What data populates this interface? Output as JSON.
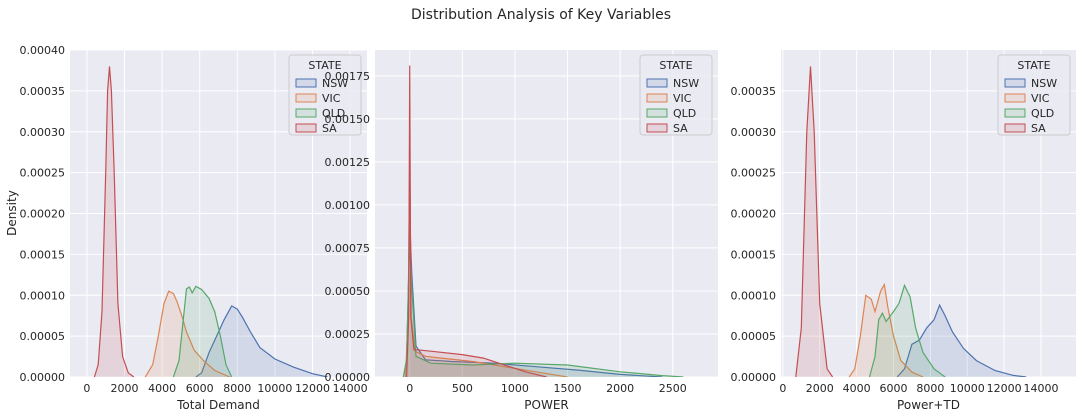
{
  "figure": {
    "title": "Distribution Analysis of Key Variables"
  },
  "colors": {
    "NSW": "#4c72b0",
    "VIC": "#dd8452",
    "QLD": "#55a868",
    "SA": "#c44e52",
    "panel_bg": "#eaeaf2",
    "grid": "#ffffff"
  },
  "chart_data": [
    {
      "type": "area",
      "xlabel": "Total Demand",
      "ylabel": "Density",
      "xlim": [
        -900,
        14900
      ],
      "ylim": [
        0,
        0.0004
      ],
      "x_ticks": [
        0,
        2000,
        4000,
        6000,
        8000,
        10000,
        12000,
        14000
      ],
      "x_tick_labels": [
        "0",
        "2000",
        "4000",
        "6000",
        "8000",
        "10000",
        "12000",
        "14000"
      ],
      "y_ticks": [
        0,
        5e-05,
        0.0001,
        0.00015,
        0.0002,
        0.00025,
        0.0003,
        0.00035,
        0.0004
      ],
      "y_tick_labels": [
        "0.00000",
        "0.00005",
        "0.00010",
        "0.00015",
        "0.00020",
        "0.00025",
        "0.00030",
        "0.00035",
        "0.00040"
      ],
      "grid": true,
      "legend": {
        "title": "STATE",
        "placement": "top-right",
        "entries": [
          "NSW",
          "VIC",
          "QLD",
          "SA"
        ]
      },
      "series": [
        {
          "name": "NSW",
          "points": [
            [
              5800,
              0
            ],
            [
              6100,
              5e-06
            ],
            [
              6500,
              3e-05
            ],
            [
              6900,
              5e-05
            ],
            [
              7300,
              7e-05
            ],
            [
              7700,
              8.7e-05
            ],
            [
              8000,
              8.3e-05
            ],
            [
              8300,
              7.2e-05
            ],
            [
              8700,
              5.5e-05
            ],
            [
              9200,
              3.6e-05
            ],
            [
              10000,
              2.2e-05
            ],
            [
              11000,
              1.2e-05
            ],
            [
              12000,
              4e-06
            ],
            [
              12800,
              0
            ]
          ]
        },
        {
          "name": "VIC",
          "points": [
            [
              3100,
              0
            ],
            [
              3500,
              1.5e-05
            ],
            [
              3800,
              5e-05
            ],
            [
              4100,
              9e-05
            ],
            [
              4350,
              0.000105
            ],
            [
              4600,
              0.000102
            ],
            [
              4800,
              9.2e-05
            ],
            [
              5050,
              7.5e-05
            ],
            [
              5300,
              5.5e-05
            ],
            [
              5700,
              3.3e-05
            ],
            [
              6200,
              2e-05
            ],
            [
              6800,
              8e-06
            ],
            [
              7600,
              0
            ]
          ]
        },
        {
          "name": "QLD",
          "points": [
            [
              4600,
              0
            ],
            [
              4900,
              2e-05
            ],
            [
              5100,
              6.5e-05
            ],
            [
              5300,
              0.000108
            ],
            [
              5450,
              0.00011
            ],
            [
              5600,
              0.000103
            ],
            [
              5800,
              0.000111
            ],
            [
              6100,
              0.000107
            ],
            [
              6500,
              9.6e-05
            ],
            [
              6800,
              8e-05
            ],
            [
              7100,
              5e-05
            ],
            [
              7400,
              1.5e-05
            ],
            [
              7700,
              0
            ]
          ]
        },
        {
          "name": "SA",
          "points": [
            [
              400,
              0
            ],
            [
              600,
              1.5e-05
            ],
            [
              800,
              8e-05
            ],
            [
              1000,
              0.00025
            ],
            [
              1100,
              0.00035
            ],
            [
              1200,
              0.00038
            ],
            [
              1300,
              0.00035
            ],
            [
              1450,
              0.00025
            ],
            [
              1650,
              9e-05
            ],
            [
              1900,
              2.5e-05
            ],
            [
              2200,
              5e-06
            ],
            [
              2500,
              0
            ]
          ]
        }
      ]
    },
    {
      "type": "area",
      "xlabel": "POWER",
      "ylabel": "",
      "xlim": [
        -330,
        2930
      ],
      "ylim": [
        0,
        0.0019
      ],
      "x_ticks": [
        0,
        500,
        1000,
        1500,
        2000,
        2500
      ],
      "x_tick_labels": [
        "0",
        "500",
        "1000",
        "1500",
        "2000",
        "2500"
      ],
      "y_ticks": [
        0,
        0.00025,
        0.0005,
        0.00075,
        0.001,
        0.00125,
        0.0015,
        0.00175
      ],
      "y_tick_labels": [
        "0.00000",
        "0.00025",
        "0.00050",
        "0.00075",
        "0.00100",
        "0.00125",
        "0.00150",
        "0.00175"
      ],
      "grid": true,
      "legend": {
        "title": "STATE",
        "placement": "top-right",
        "entries": [
          "NSW",
          "VIC",
          "QLD",
          "SA"
        ]
      },
      "series": [
        {
          "name": "NSW",
          "points": [
            [
              -60,
              0
            ],
            [
              -30,
              0.0001
            ],
            [
              -10,
              0.0006
            ],
            [
              0,
              0.00092
            ],
            [
              20,
              0.0006
            ],
            [
              60,
              0.00018
            ],
            [
              150,
              0.0001
            ],
            [
              400,
              9e-05
            ],
            [
              800,
              8e-05
            ],
            [
              1200,
              6e-05
            ],
            [
              1600,
              4e-05
            ],
            [
              2000,
              1.5e-05
            ],
            [
              2400,
              0
            ]
          ]
        },
        {
          "name": "VIC",
          "points": [
            [
              -40,
              0
            ],
            [
              -15,
              0.00035
            ],
            [
              0,
              0.00125
            ],
            [
              15,
              0.00035
            ],
            [
              50,
              0.00015
            ],
            [
              150,
              0.00012
            ],
            [
              300,
              0.00011
            ],
            [
              600,
              9e-05
            ],
            [
              900,
              6e-05
            ],
            [
              1200,
              3e-05
            ],
            [
              1500,
              0
            ]
          ]
        },
        {
          "name": "QLD",
          "points": [
            [
              -60,
              0
            ],
            [
              -30,
              0.0001
            ],
            [
              -10,
              0.00058
            ],
            [
              0,
              0.00078
            ],
            [
              20,
              0.00052
            ],
            [
              60,
              0.00012
            ],
            [
              200,
              8e-05
            ],
            [
              600,
              7e-05
            ],
            [
              1000,
              8e-05
            ],
            [
              1500,
              7e-05
            ],
            [
              2000,
              3e-05
            ],
            [
              2400,
              8e-06
            ],
            [
              2600,
              0
            ]
          ]
        },
        {
          "name": "SA",
          "points": [
            [
              -30,
              0
            ],
            [
              -10,
              0.00035
            ],
            [
              0,
              0.00181
            ],
            [
              10,
              0.00035
            ],
            [
              40,
              0.00016
            ],
            [
              200,
              0.00015
            ],
            [
              500,
              0.00013
            ],
            [
              700,
              0.00011
            ],
            [
              900,
              7e-05
            ],
            [
              1100,
              3e-05
            ],
            [
              1300,
              0
            ]
          ]
        }
      ]
    },
    {
      "type": "area",
      "xlabel": "Power+TD",
      "ylabel": "",
      "xlim": [
        -100,
        15900
      ],
      "ylim": [
        0,
        0.0004
      ],
      "x_ticks": [
        0,
        2000,
        4000,
        6000,
        8000,
        10000,
        12000,
        14000
      ],
      "x_tick_labels": [
        "0",
        "2000",
        "4000",
        "6000",
        "8000",
        "10000",
        "12000",
        "14000"
      ],
      "y_ticks": [
        0,
        5e-05,
        0.0001,
        0.00015,
        0.0002,
        0.00025,
        0.0003,
        0.00035
      ],
      "y_tick_labels": [
        "0.00000",
        "0.00005",
        "0.00010",
        "0.00015",
        "0.00020",
        "0.00025",
        "0.00030",
        "0.00035"
      ],
      "grid": true,
      "legend": {
        "title": "STATE",
        "placement": "top-right",
        "entries": [
          "NSW",
          "VIC",
          "QLD",
          "SA"
        ]
      },
      "series": [
        {
          "name": "NSW",
          "points": [
            [
              6200,
              0
            ],
            [
              6600,
              1e-05
            ],
            [
              7000,
              4e-05
            ],
            [
              7400,
              4.5e-05
            ],
            [
              7800,
              6e-05
            ],
            [
              8200,
              7e-05
            ],
            [
              8500,
              8.8e-05
            ],
            [
              8800,
              7.5e-05
            ],
            [
              9200,
              5.5e-05
            ],
            [
              9800,
              3.5e-05
            ],
            [
              10500,
              2e-05
            ],
            [
              11500,
              8e-06
            ],
            [
              12500,
              2e-06
            ],
            [
              13200,
              0
            ]
          ]
        },
        {
          "name": "VIC",
          "points": [
            [
              3600,
              0
            ],
            [
              3900,
              1e-05
            ],
            [
              4200,
              5e-05
            ],
            [
              4500,
              0.0001
            ],
            [
              4800,
              9.5e-05
            ],
            [
              5000,
              8e-05
            ],
            [
              5300,
              0.000105
            ],
            [
              5500,
              0.000113
            ],
            [
              5700,
              8.5e-05
            ],
            [
              6000,
              5e-05
            ],
            [
              6400,
              2e-05
            ],
            [
              7000,
              6e-06
            ],
            [
              7600,
              0
            ]
          ]
        },
        {
          "name": "QLD",
          "points": [
            [
              4700,
              0
            ],
            [
              5000,
              2.5e-05
            ],
            [
              5200,
              7e-05
            ],
            [
              5400,
              7.8e-05
            ],
            [
              5600,
              6.8e-05
            ],
            [
              6000,
              8e-05
            ],
            [
              6300,
              9e-05
            ],
            [
              6600,
              0.000112
            ],
            [
              6900,
              9.8e-05
            ],
            [
              7200,
              6e-05
            ],
            [
              7600,
              3e-05
            ],
            [
              8200,
              1e-05
            ],
            [
              8800,
              0
            ]
          ]
        },
        {
          "name": "SA",
          "points": [
            [
              700,
              0
            ],
            [
              1000,
              6e-05
            ],
            [
              1300,
              0.0003
            ],
            [
              1500,
              0.00038
            ],
            [
              1700,
              0.0003
            ],
            [
              2000,
              9e-05
            ],
            [
              2400,
              1e-05
            ],
            [
              2700,
              0
            ]
          ]
        }
      ]
    }
  ]
}
